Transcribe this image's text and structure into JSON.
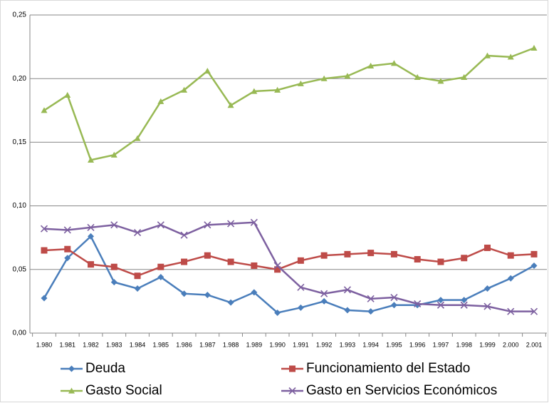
{
  "chart_data": {
    "type": "line",
    "categories": [
      "1.980",
      "1.981",
      "1.982",
      "1.983",
      "1.984",
      "1.985",
      "1.986",
      "1.987",
      "1.988",
      "1.989",
      "1.990",
      "1.991",
      "1.992",
      "1.993",
      "1.994",
      "1.995",
      "1.996",
      "1.997",
      "1.998",
      "1.999",
      "2.000",
      "2.001"
    ],
    "series": [
      {
        "name": "Deuda",
        "color": "#4a7ebb",
        "marker": "diamond",
        "values": [
          0.0275,
          0.059,
          0.076,
          0.04,
          0.035,
          0.044,
          0.031,
          0.03,
          0.024,
          0.032,
          0.016,
          0.02,
          0.025,
          0.018,
          0.017,
          0.022,
          0.022,
          0.026,
          0.026,
          0.035,
          0.043,
          0.053
        ]
      },
      {
        "name": "Funcionamiento del Estado",
        "color": "#be4b48",
        "marker": "square",
        "values": [
          0.065,
          0.066,
          0.054,
          0.052,
          0.045,
          0.052,
          0.056,
          0.061,
          0.056,
          0.053,
          0.05,
          0.057,
          0.061,
          0.062,
          0.063,
          0.062,
          0.058,
          0.056,
          0.059,
          0.067,
          0.061,
          0.062
        ]
      },
      {
        "name": "Gasto Social",
        "color": "#98b954",
        "marker": "triangle",
        "values": [
          0.175,
          0.187,
          0.136,
          0.14,
          0.153,
          0.182,
          0.191,
          0.206,
          0.179,
          0.19,
          0.191,
          0.196,
          0.2,
          0.202,
          0.21,
          0.212,
          0.201,
          0.198,
          0.201,
          0.218,
          0.217,
          0.224
        ]
      },
      {
        "name": "Gasto en Servicios Económicos",
        "color": "#7d60a0",
        "marker": "x",
        "values": [
          0.082,
          0.081,
          0.083,
          0.085,
          0.079,
          0.085,
          0.077,
          0.085,
          0.086,
          0.087,
          0.053,
          0.036,
          0.031,
          0.034,
          0.027,
          0.028,
          0.023,
          0.022,
          0.022,
          0.021,
          0.017,
          0.017
        ]
      }
    ],
    "ylim": [
      0,
      0.25
    ],
    "yticks": [
      {
        "value": 0,
        "label": "0,00"
      },
      {
        "value": 0.05,
        "label": "0,05"
      },
      {
        "value": 0.1,
        "label": "0,10"
      },
      {
        "value": 0.15,
        "label": "0,15"
      },
      {
        "value": 0.2,
        "label": "0,20"
      },
      {
        "value": 0.25,
        "label": "0,25"
      }
    ],
    "grid": true,
    "legend": "bottom"
  }
}
